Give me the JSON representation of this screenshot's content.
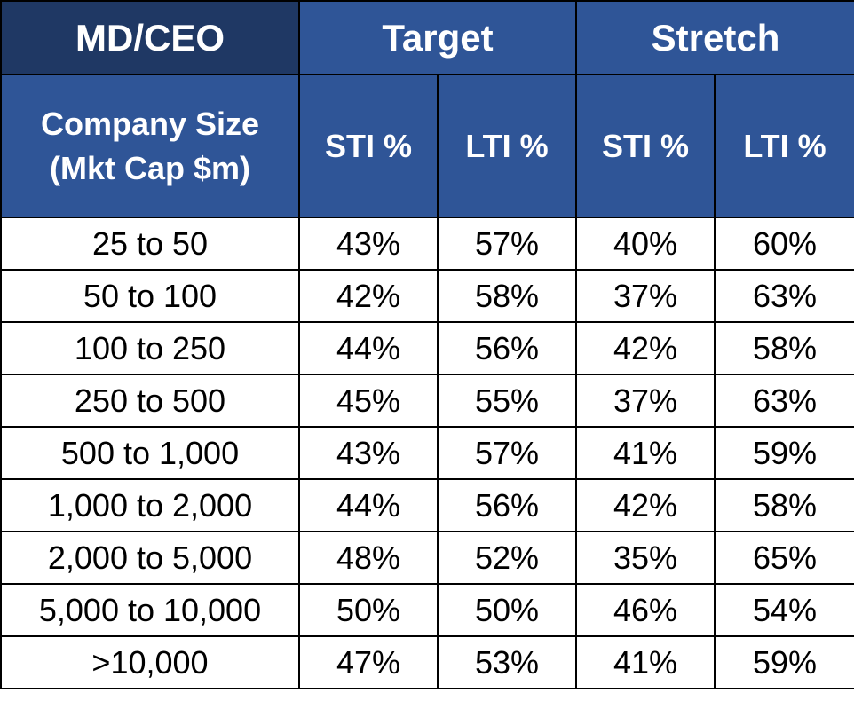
{
  "table": {
    "title": "MD/CEO",
    "groups": [
      "Target",
      "Stretch"
    ],
    "size_header_line1": "Company Size",
    "size_header_line2": "(Mkt Cap $m)",
    "sub_headers": [
      "STI %",
      "LTI %",
      "STI %",
      "LTI %"
    ],
    "rows": [
      {
        "size": "25 to 50",
        "target_sti": "43%",
        "target_lti": "57%",
        "stretch_sti": "40%",
        "stretch_lti": "60%"
      },
      {
        "size": "50 to 100",
        "target_sti": "42%",
        "target_lti": "58%",
        "stretch_sti": "37%",
        "stretch_lti": "63%"
      },
      {
        "size": "100 to 250",
        "target_sti": "44%",
        "target_lti": "56%",
        "stretch_sti": "42%",
        "stretch_lti": "58%"
      },
      {
        "size": "250 to 500",
        "target_sti": "45%",
        "target_lti": "55%",
        "stretch_sti": "37%",
        "stretch_lti": "63%"
      },
      {
        "size": "500 to 1,000",
        "target_sti": "43%",
        "target_lti": "57%",
        "stretch_sti": "41%",
        "stretch_lti": "59%"
      },
      {
        "size": "1,000 to 2,000",
        "target_sti": "44%",
        "target_lti": "56%",
        "stretch_sti": "42%",
        "stretch_lti": "58%"
      },
      {
        "size": "2,000 to 5,000",
        "target_sti": "48%",
        "target_lti": "52%",
        "stretch_sti": "35%",
        "stretch_lti": "65%"
      },
      {
        "size": "5,000 to 10,000",
        "target_sti": "50%",
        "target_lti": "50%",
        "stretch_sti": "46%",
        "stretch_lti": "54%"
      },
      {
        "size": ">10,000",
        "target_sti": "47%",
        "target_lti": "53%",
        "stretch_sti": "41%",
        "stretch_lti": "59%"
      }
    ]
  },
  "colors": {
    "title_bg": "#1f3864",
    "header_bg": "#2f5597",
    "header_text": "#ffffff",
    "border": "#000000"
  }
}
